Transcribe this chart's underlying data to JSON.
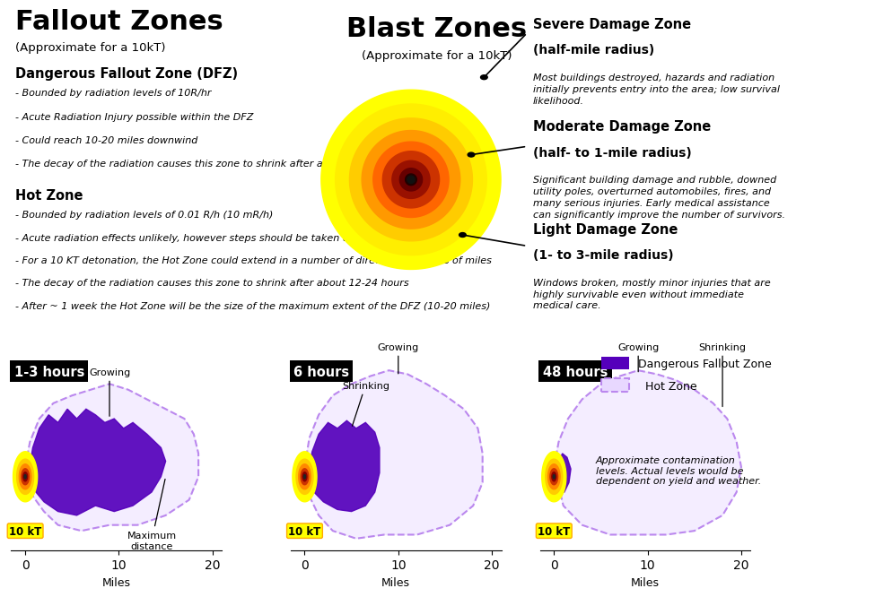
{
  "title_fallout": "Fallout Zones",
  "subtitle_fallout": "(Approximate for a 10kT)",
  "title_blast": "Blast Zones",
  "subtitle_blast": "(Approximate for a 10kT)",
  "dfz_title": "Dangerous Fallout Zone (DFZ)",
  "dfz_bullets": [
    "- Bounded by radiation levels of 10R/hr",
    "- Acute Radiation Injury possible within the DFZ",
    "- Could reach 10-20 miles downwind",
    "- The decay of the radiation causes this zone to shrink after about 1-3 hours"
  ],
  "hz_title": "Hot Zone",
  "hz_bullets": [
    "- Bounded by radiation levels of 0.01 R/h (10 mR/h)",
    "- Acute radiation effects unlikely, however steps should be taken to control exposure",
    "- For a 10 KT detonation, the Hot Zone could extend in a number of directions for 100s of miles",
    "- The decay of the radiation causes this zone to shrink after about 12-24 hours",
    "- After ~ 1 week the Hot Zone will be the size of the maximum extent of the DFZ (10-20 miles)"
  ],
  "blast_zones": [
    {
      "title": "Severe Damage Zone",
      "subtitle": "(half-mile radius)",
      "desc": "Most buildings destroyed, hazards and radiation\ninitially prevents entry into the area; low survival\nlikelihood."
    },
    {
      "title": "Moderate Damage Zone",
      "subtitle": "(half- to 1-mile radius)",
      "desc": "Significant building damage and rubble, downed\nutility poles, overturned automobiles, fires, and\nmany serious injuries. Early medical assistance\ncan significantly improve the number of survivors."
    },
    {
      "title": "Light Damage Zone",
      "subtitle": "(1- to 3-mile radius)",
      "desc": "Windows broken, mostly minor injuries that are\nhighly survivable even without immediate\nmedical care."
    }
  ],
  "time_labels": [
    "1-3 hours",
    "6 hours",
    "48 hours"
  ],
  "dfz_fill_color": "#5500bb",
  "hot_zone_fill": "#e8d8ff",
  "hot_zone_edge": "#bb88ee",
  "background_color": "#ffffff",
  "approx_note": "Approximate contamination\nlevels. Actual levels would be\ndependent on yield and weather."
}
